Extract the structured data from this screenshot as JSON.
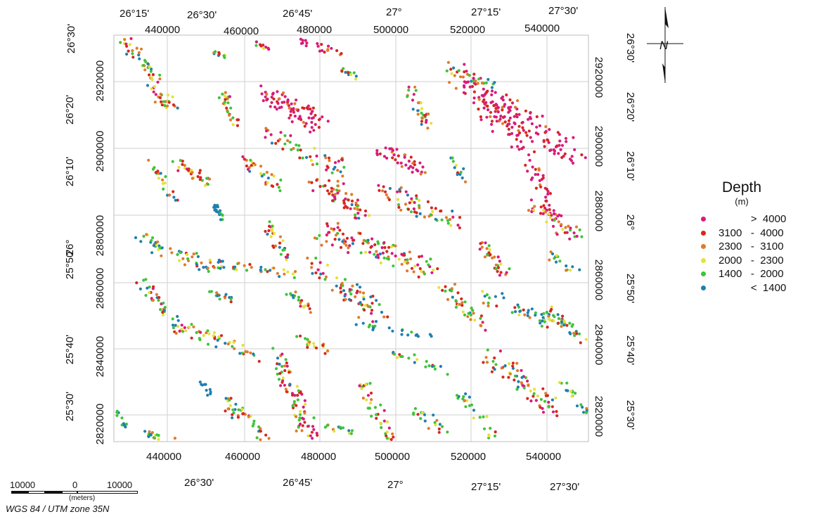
{
  "map": {
    "grid": {
      "top_lon_labels": [
        "26°15'",
        "26°30'",
        "26°45'",
        "27°",
        "27°15'",
        "27°30'"
      ],
      "top_easting_labels": [
        "440000",
        "460000",
        "480000",
        "500000",
        "520000",
        "540000"
      ],
      "bottom_easting_labels": [
        "440000",
        "460000",
        "480000",
        "500000",
        "520000",
        "540000"
      ],
      "bottom_lon_labels": [
        "26°30'",
        "26°45'",
        "27°",
        "27°15'",
        "27°30'"
      ],
      "left_lat_labels": [
        "26°30'",
        "26°20'",
        "26°10'",
        "26°",
        "25°50'",
        "25°40'",
        "25°30'"
      ],
      "left_northing_labels": [
        "2920000",
        "2900000",
        "2880000",
        "2860000",
        "2840000",
        "2820000"
      ],
      "right_northing_labels": [
        "2920000",
        "2900000",
        "2880000",
        "2860000",
        "2840000",
        "2820000"
      ],
      "right_lat_labels": [
        "26°30'",
        "26°20'",
        "26°10'",
        "26°",
        "25°50'",
        "25°40'",
        "25°30'"
      ]
    },
    "north_arrow": {
      "label": "N",
      "icon": "north-arrow-icon"
    },
    "depth_classes_colors": [
      "#d81b7a",
      "#d7261e",
      "#e07b2a",
      "#e4e23a",
      "#3fc43a",
      "#1f7fb0"
    ]
  },
  "legend": {
    "title": "Depth",
    "unit": "(m)",
    "items": [
      {
        "range": "           >  4000",
        "color": "#d81b7a"
      },
      {
        "range": "3100   -  4000",
        "color": "#d7261e"
      },
      {
        "range": "2300   -  3100",
        "color": "#e07b2a"
      },
      {
        "range": "2000   -  2300",
        "color": "#e4e23a"
      },
      {
        "range": "1400   -  2000",
        "color": "#3fc43a"
      },
      {
        "range": "           <  1400",
        "color": "#1f7fb0"
      }
    ]
  },
  "scalebar": {
    "left_value": "10000",
    "middle_value": "0",
    "right_value": "10000",
    "units": "(meters)"
  },
  "projection": "WGS 84 / UTM zone 35N"
}
